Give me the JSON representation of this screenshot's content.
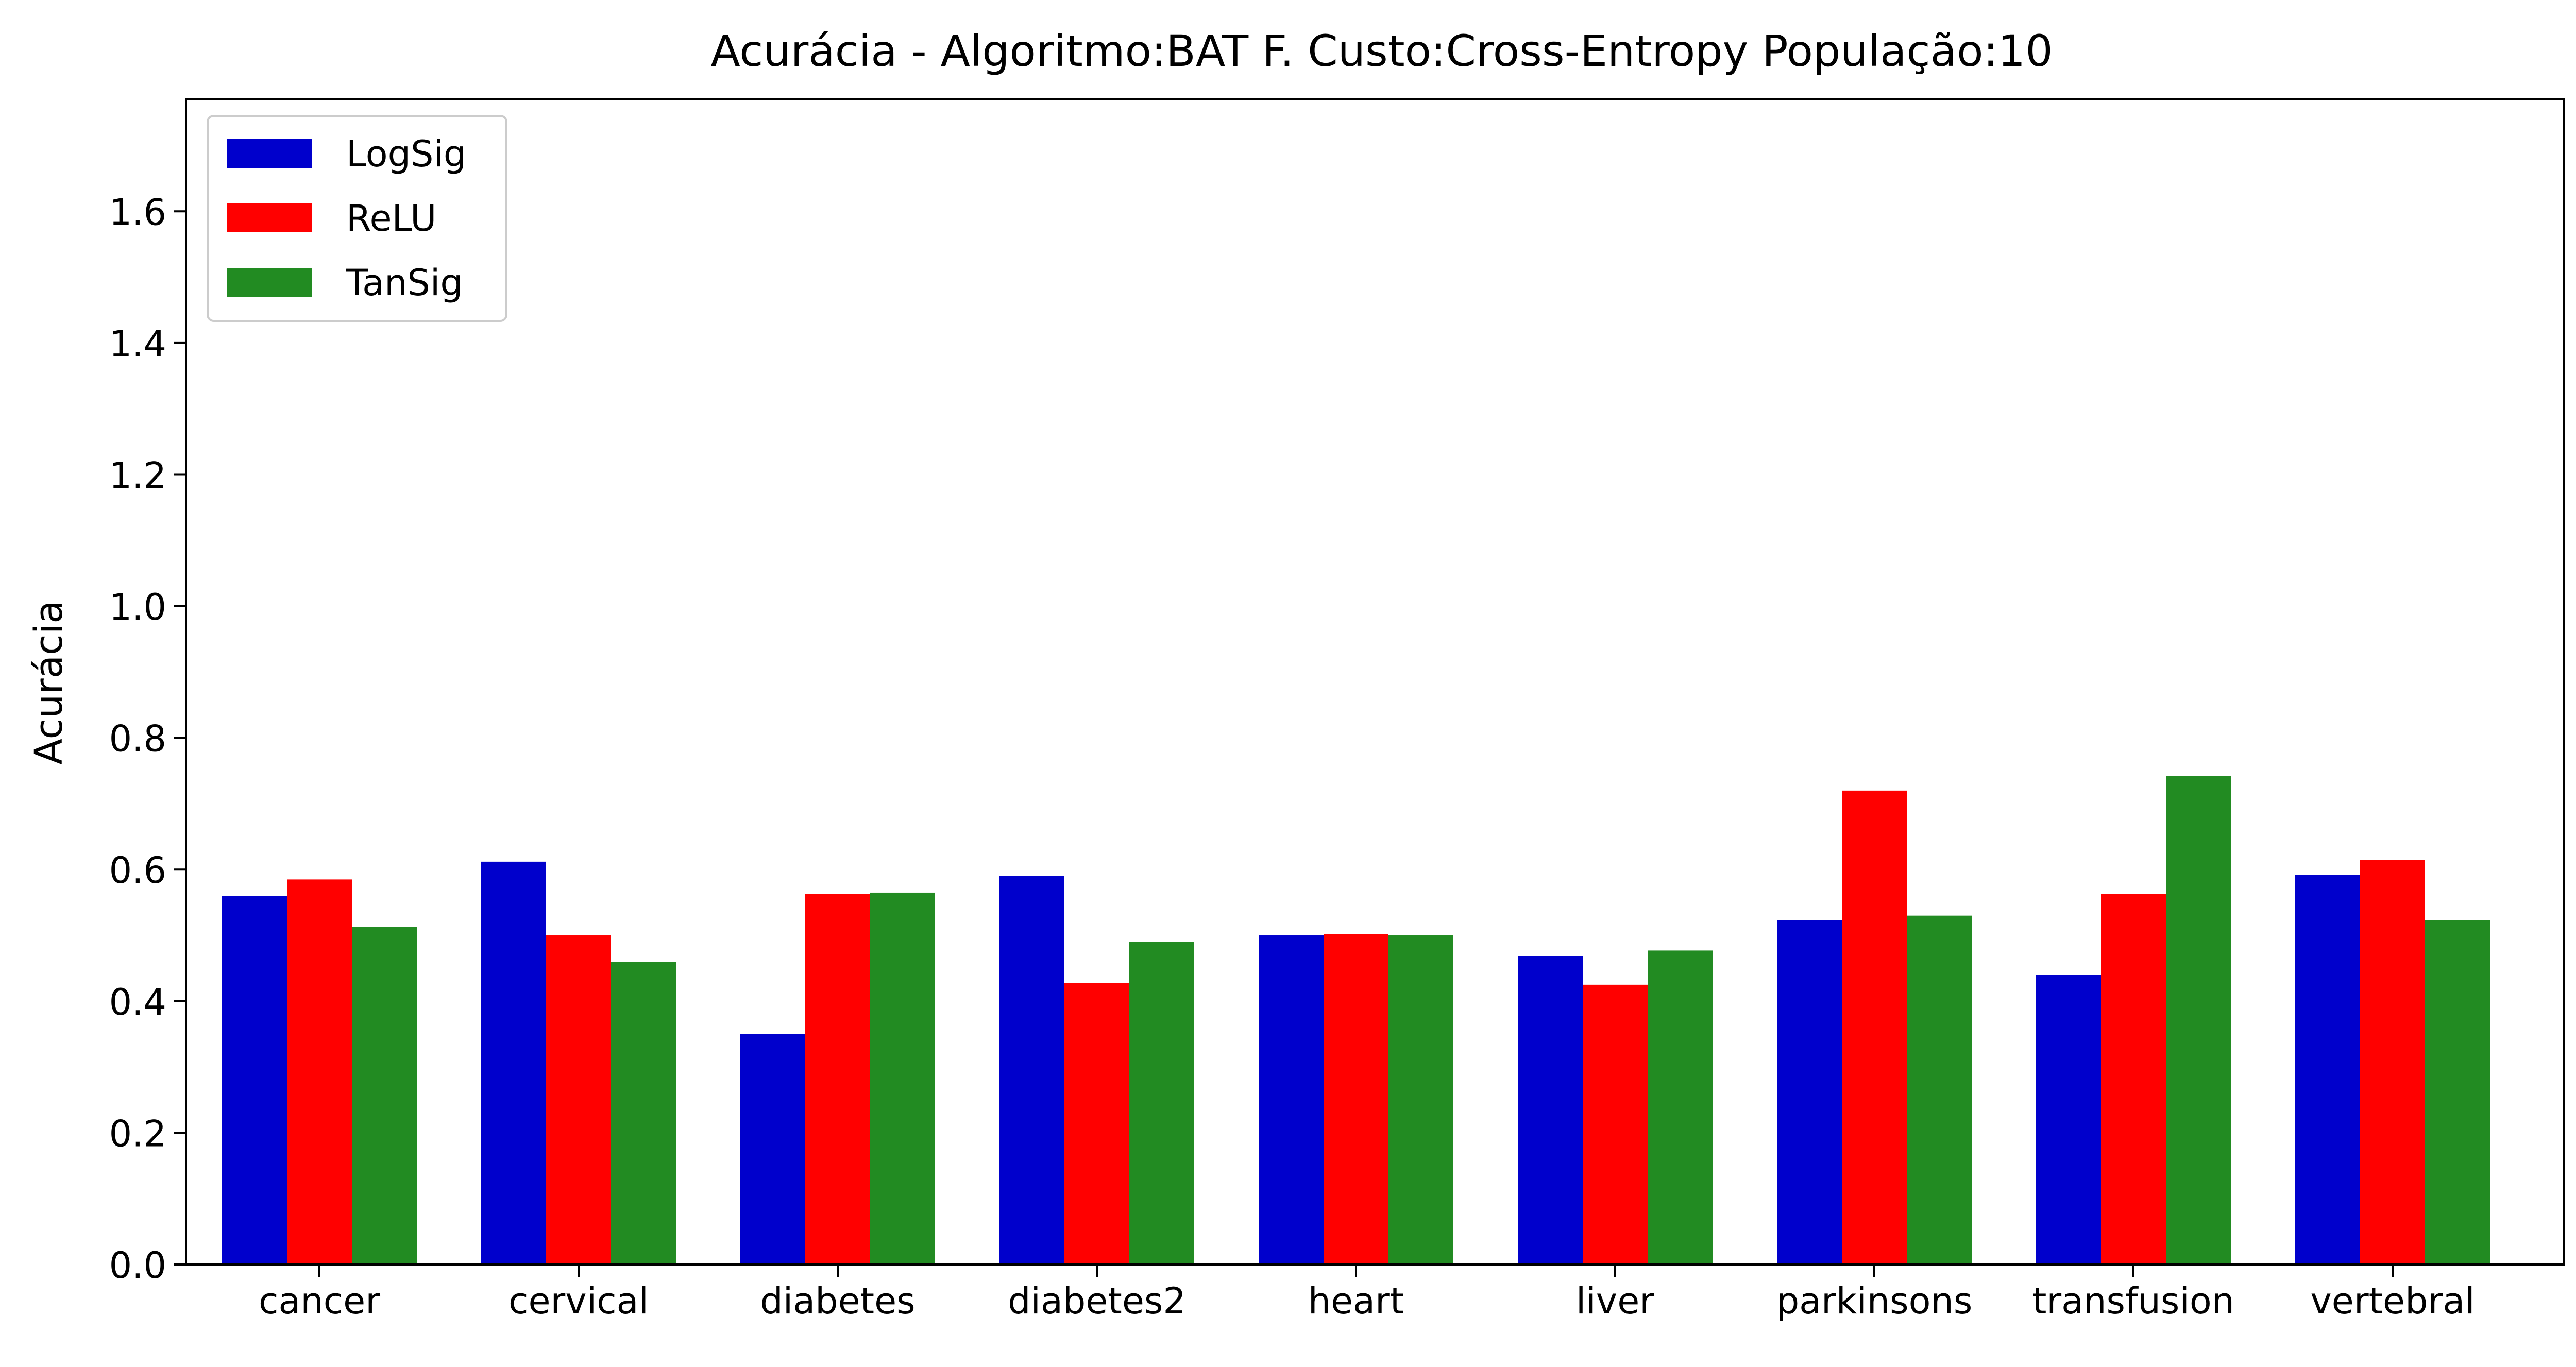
{
  "chart_data": {
    "type": "bar",
    "title": "Acurácia - Algoritmo:BAT F. Custo:Cross-Entropy População:10",
    "xlabel": "",
    "ylabel": "Acurácia",
    "ylim": [
      0,
      1.77
    ],
    "yticks": [
      "0.0",
      "0.2",
      "0.4",
      "0.6",
      "0.8",
      "1.0",
      "1.2",
      "1.4",
      "1.6"
    ],
    "categories": [
      "cancer",
      "cervical",
      "diabetes",
      "diabetes2",
      "heart",
      "liver",
      "parkinsons",
      "transfusion",
      "vertebral"
    ],
    "series": [
      {
        "name": "LogSig",
        "color": "#0000cc",
        "values": [
          0.56,
          0.612,
          0.35,
          0.59,
          0.5,
          0.468,
          0.523,
          0.44,
          0.592
        ]
      },
      {
        "name": "ReLU",
        "color": "#ff0000",
        "values": [
          0.585,
          0.5,
          0.563,
          0.428,
          0.502,
          0.425,
          0.72,
          0.563,
          0.615
        ]
      },
      {
        "name": "TanSig",
        "color": "#228b22",
        "values": [
          0.513,
          0.46,
          0.565,
          0.49,
          0.5,
          0.477,
          0.53,
          0.742,
          0.523
        ]
      }
    ],
    "grid": false,
    "legend_position": "top-left"
  }
}
